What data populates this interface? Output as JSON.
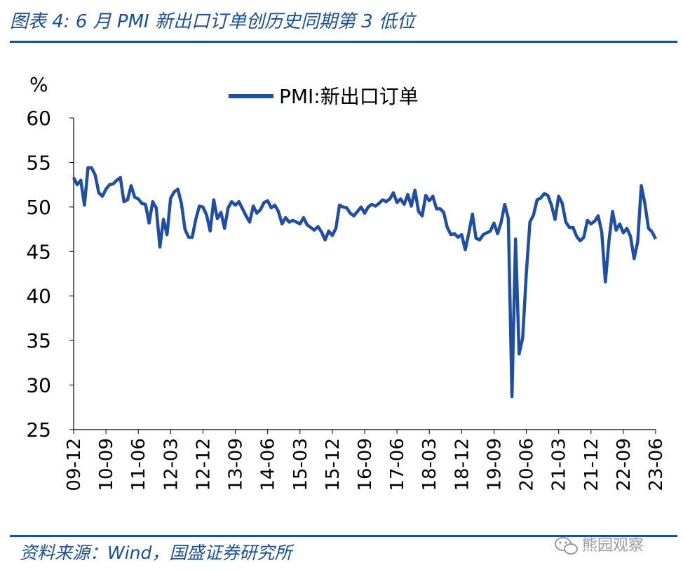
{
  "header": {
    "title": "图表 4:  6 月 PMI 新出口订单创历史同期第 3 低位"
  },
  "footer": {
    "source": "资料来源：Wind，国盛证券研究所",
    "watermark": "熊园观察"
  },
  "colors": {
    "accent": "#1a4f9c",
    "series": "#1f4ea3"
  },
  "chart_data": {
    "type": "line",
    "title": "",
    "ylabel": "%",
    "xlabel": "",
    "ylim": [
      25,
      60
    ],
    "yticks": [
      60,
      55,
      50,
      45,
      40,
      35,
      30,
      25
    ],
    "xtick_labels": [
      "09-12",
      "10-09",
      "11-06",
      "12-03",
      "12-12",
      "13-09",
      "14-06",
      "15-03",
      "15-12",
      "16-09",
      "17-06",
      "18-03",
      "18-12",
      "19-09",
      "20-06",
      "21-03",
      "21-12",
      "22-09",
      "23-06"
    ],
    "x_start": "2009-12",
    "x_end": "2023-06",
    "legend": "top-center",
    "grid": false,
    "series": [
      {
        "name": "PMI:新出口订单",
        "values": [
          53.3,
          52.5,
          53.0,
          50.2,
          54.4,
          54.4,
          53.6,
          51.6,
          51.2,
          52.0,
          52.5,
          52.6,
          53.0,
          53.3,
          50.6,
          50.8,
          52.4,
          51.1,
          50.9,
          50.4,
          50.3,
          48.2,
          50.6,
          49.9,
          45.5,
          48.6,
          46.9,
          51.0,
          51.7,
          52.0,
          50.4,
          47.5,
          46.6,
          46.6,
          48.6,
          50.1,
          50.0,
          49.1,
          47.3,
          50.8,
          48.7,
          49.4,
          47.6,
          49.9,
          50.6,
          50.2,
          50.6,
          49.8,
          49.0,
          48.3,
          50.1,
          49.3,
          49.7,
          50.5,
          50.7,
          49.9,
          50.2,
          49.5,
          48.1,
          48.8,
          48.3,
          48.5,
          48.3,
          48.1,
          48.8,
          48.0,
          47.7,
          47.4,
          47.8,
          47.2,
          46.3,
          47.3,
          46.8,
          47.6,
          50.2,
          50.0,
          49.9,
          49.3,
          49.0,
          49.5,
          50.0,
          49.3,
          50.0,
          50.3,
          50.1,
          50.4,
          50.8,
          50.6,
          50.9,
          51.6,
          50.5,
          50.9,
          50.3,
          51.4,
          50.1,
          51.9,
          49.5,
          49.0,
          51.3,
          50.7,
          51.2,
          49.8,
          49.8,
          49.4,
          47.7,
          46.9,
          47.0,
          46.6,
          46.9,
          45.2,
          47.1,
          49.2,
          46.5,
          46.3,
          46.9,
          47.1,
          47.3,
          48.2,
          47.0,
          48.3,
          50.3,
          48.7,
          28.7,
          46.4,
          33.5,
          35.3,
          42.6,
          48.3,
          49.1,
          50.8,
          51.0,
          51.5,
          51.3,
          50.2,
          48.6,
          51.2,
          50.4,
          48.3,
          47.7,
          47.7,
          46.7,
          46.2,
          46.6,
          48.5,
          48.1,
          48.4,
          49.0,
          47.2,
          41.6,
          46.2,
          49.5,
          47.4,
          48.1,
          47.1,
          47.6,
          46.7,
          44.2,
          46.1,
          52.4,
          50.4,
          47.6,
          47.2,
          46.4
        ]
      }
    ]
  }
}
